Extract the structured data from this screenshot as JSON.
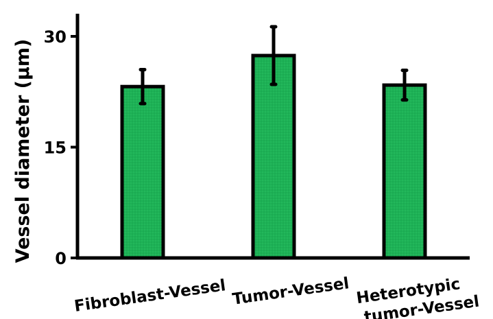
{
  "chart_data": {
    "type": "bar",
    "title": "",
    "xlabel": "",
    "ylabel": "Vessel diameter (μm)",
    "ylim": [
      0,
      33
    ],
    "yticks": [
      0,
      15,
      30
    ],
    "ytick_labels": [
      "0",
      "15",
      "30"
    ],
    "grid": false,
    "legend": "none",
    "categories": [
      [
        "Fibroblast-Vessel"
      ],
      [
        "Tumor-Vessel"
      ],
      [
        "Heterotypic",
        "tumor-Vessel"
      ]
    ],
    "values": [
      23.2,
      27.4,
      23.4
    ],
    "errors": [
      2.3,
      3.9,
      2.0
    ],
    "colors": {
      "bar_fill": "#1db256",
      "bar_stroke": "#000000",
      "axis": "#000000",
      "error_bar": "#000000"
    }
  }
}
